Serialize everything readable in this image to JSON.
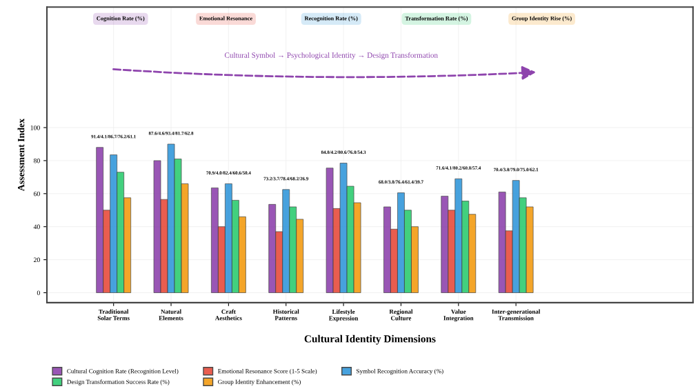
{
  "chart_data": {
    "type": "bar",
    "xlabel": "Cultural Identity Dimensions",
    "ylabel": "Assessment Index",
    "categories": [
      "Traditional\nSolar Terms",
      "Natural\nElements",
      "Craft\nAesthetics",
      "Historical\nPatterns",
      "Lifestyle\nExpression",
      "Regional\nCulture",
      "Value\nIntegration",
      "Inter-generational\nTransmission"
    ],
    "series": [
      {
        "name": "Cultural Cognition Rate (Recognition Level)",
        "color": "#8e44ad",
        "values": [
          88,
          80,
          63.5,
          53.5,
          75.5,
          52,
          58.5,
          61
        ]
      },
      {
        "name": "Emotional Resonance Score (1-5 Scale)",
        "color": "#e74c3c",
        "values": [
          50,
          56.5,
          40,
          37,
          51,
          38.5,
          50,
          37.5
        ]
      },
      {
        "name": "Symbol Recognition Accuracy (%)",
        "color": "#3498db",
        "values": [
          83.5,
          90,
          66,
          62.5,
          78.5,
          60.5,
          69,
          68
        ]
      },
      {
        "name": "Design Transformation Success Rate (%)",
        "color": "#2ecc71",
        "values": [
          73,
          81,
          56,
          52,
          64.5,
          50,
          55.5,
          57.5
        ]
      },
      {
        "name": "Group Identity Enhancement (%)",
        "color": "#f39c12",
        "values": [
          57.5,
          66,
          46,
          44.5,
          54.5,
          40,
          47.5,
          52
        ]
      }
    ],
    "ylim": [
      -6,
      173
    ],
    "yticks": [
      0,
      20,
      40,
      60,
      80,
      100
    ],
    "grid": true,
    "legend": "bottom",
    "annotations": [
      "Cognition Rate (%)",
      "Emotional Resonance",
      "Recognition Rate (%)",
      "Transformation Rate (%)",
      "Group Identity Rise (%)",
      "Cultural Symbol → Psychological Identity → Design Transformation",
      "91.4/4.1/86.7/76.2/61.1",
      "87.6/4.6/93.4/81.7/62.8",
      "70.9/4.0/82.4/60.6/50.4",
      "73.2/3.7/78.4/68.2/26.9",
      "84.8/4.2/80.6/76.8/54.3",
      "68.0/3.8/76.4/61.4/39.7",
      "71.6/4.1/80.2/60.8/57.4",
      "70.4/3.8/79.0/75.0/62.1"
    ]
  }
}
